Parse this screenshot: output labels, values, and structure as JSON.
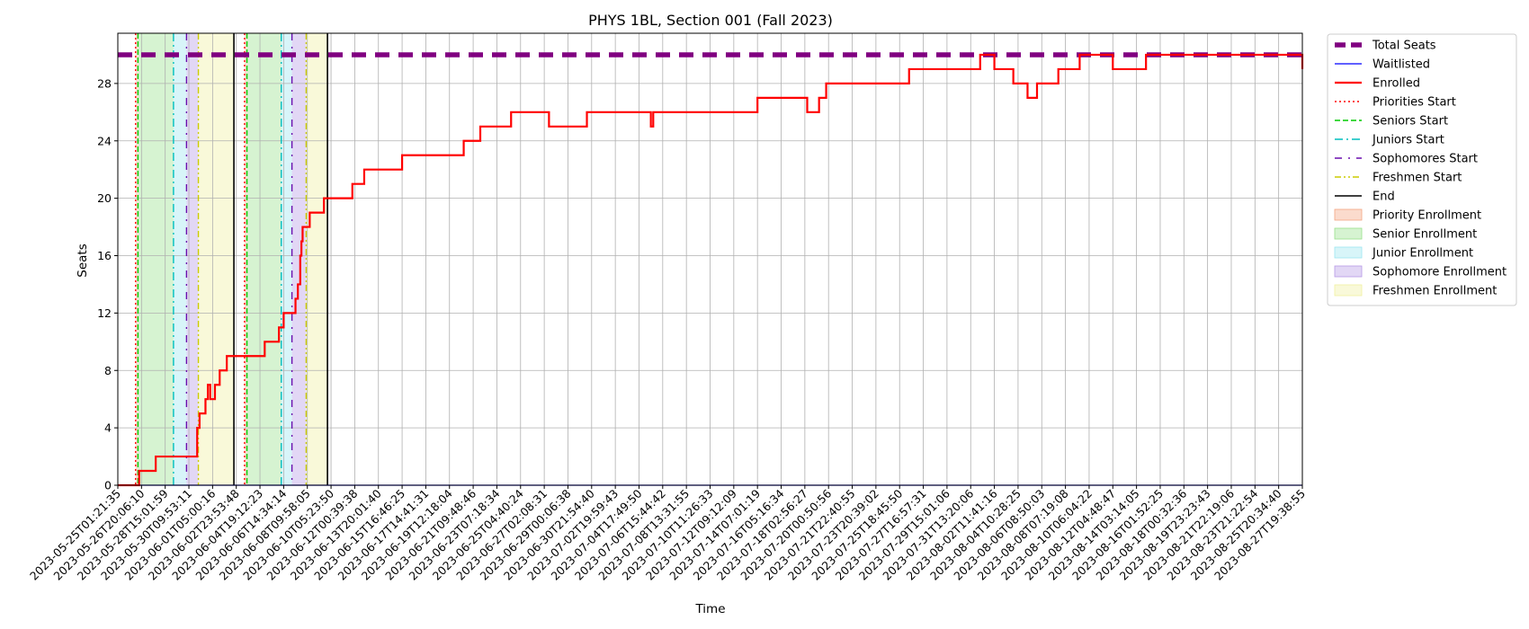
{
  "chart_data": {
    "type": "line",
    "title": "PHYS 1BL, Section 001 (Fall 2023)",
    "xlabel": "Time",
    "ylabel": "Seats",
    "ylim": [
      0,
      31.5
    ],
    "yticks": [
      0,
      4,
      8,
      12,
      16,
      20,
      24,
      28
    ],
    "grid": true,
    "legend_position": "outside-right",
    "x_tick_labels": [
      "2023-05-25T01:21:35",
      "2023-05-26T20:06:10",
      "2023-05-28T15:01:59",
      "2023-05-30T09:53:11",
      "2023-06-01T05:00:16",
      "2023-06-02T23:53:48",
      "2023-06-04T19:12:23",
      "2023-06-06T14:34:14",
      "2023-06-08T09:58:05",
      "2023-06-10T05:23:50",
      "2023-06-12T00:39:38",
      "2023-06-13T20:01:40",
      "2023-06-15T16:46:25",
      "2023-06-17T14:41:31",
      "2023-06-19T12:18:04",
      "2023-06-21T09:48:46",
      "2023-06-23T07:18:34",
      "2023-06-25T04:40:24",
      "2023-06-27T02:08:31",
      "2023-06-29T00:06:38",
      "2023-06-30T21:54:40",
      "2023-07-02T19:59:43",
      "2023-07-04T17:49:50",
      "2023-07-06T15:44:42",
      "2023-07-08T13:31:55",
      "2023-07-10T11:26:33",
      "2023-07-12T09:12:09",
      "2023-07-14T07:01:19",
      "2023-07-16T05:16:34",
      "2023-07-18T02:56:27",
      "2023-07-20T00:50:56",
      "2023-07-21T22:40:55",
      "2023-07-23T20:39:02",
      "2023-07-25T18:45:50",
      "2023-07-27T16:57:31",
      "2023-07-29T15:01:06",
      "2023-07-31T13:20:06",
      "2023-08-02T11:41:16",
      "2023-08-04T10:28:25",
      "2023-08-06T08:50:03",
      "2023-08-08T07:19:08",
      "2023-08-10T06:04:22",
      "2023-08-12T04:48:47",
      "2023-08-14T03:14:05",
      "2023-08-16T01:52:25",
      "2023-08-18T00:32:36",
      "2023-08-19T23:23:43",
      "2023-08-21T22:19:06",
      "2023-08-23T21:22:54",
      "2023-08-25T20:34:40",
      "2023-08-27T19:38:55"
    ],
    "series": [
      {
        "name": "Total Seats",
        "color": "#800080",
        "style": "dashed-thick",
        "x_tick_index": [
          0,
          50
        ],
        "values": [
          30,
          30
        ]
      },
      {
        "name": "Waitlisted",
        "color": "#0000ff",
        "style": "solid",
        "x_tick_index": [
          0,
          50
        ],
        "values": [
          0,
          0
        ]
      },
      {
        "name": "Enrolled",
        "color": "#ff0000",
        "style": "solid-step",
        "x_tick_index": [
          0,
          0.9,
          1.6,
          3.3,
          3.35,
          3.45,
          3.6,
          3.7,
          3.75,
          3.8,
          3.9,
          4.0,
          4.1,
          4.3,
          4.6,
          6.2,
          6.8,
          7.0,
          7.2,
          7.5,
          7.6,
          7.7,
          7.75,
          7.8,
          8.0,
          8.1,
          8.4,
          8.7,
          9.0,
          9.1,
          9.9,
          10.4,
          12.0,
          14.6,
          15.3,
          16.6,
          18.2,
          19.8,
          22.4,
          22.5,
          22.6,
          24.9,
          27.0,
          29.1,
          29.6,
          29.9,
          33.4,
          36.4,
          36.8,
          37.0,
          37.8,
          38.4,
          38.8,
          39.7,
          40.6,
          42.0,
          43.4,
          50.0
        ],
        "values": [
          0,
          1,
          2,
          2,
          4,
          5,
          5,
          6,
          6,
          7,
          6,
          6,
          7,
          8,
          9,
          10,
          11,
          12,
          12,
          13,
          14,
          16,
          17,
          18,
          18,
          19,
          19,
          20,
          20,
          20,
          21,
          22,
          23,
          24,
          25,
          26,
          25,
          26,
          26,
          25,
          26,
          26,
          27,
          26,
          27,
          28,
          29,
          30,
          30,
          29,
          28,
          27,
          28,
          29,
          30,
          29,
          30,
          29
        ]
      }
    ],
    "markers": [
      {
        "name": "Priorities Start",
        "color": "#ff0000",
        "style": "dotted",
        "x_tick_index": [
          0.75,
          5.35
        ]
      },
      {
        "name": "Seniors Start",
        "color": "#00cc00",
        "style": "dashed",
        "x_tick_index": [
          0.85,
          5.45
        ]
      },
      {
        "name": "Juniors Start",
        "color": "#00bfbf",
        "style": "dashdot",
        "x_tick_index": [
          2.35,
          6.9
        ]
      },
      {
        "name": "Sophomores Start",
        "color": "#6a0dad",
        "style": "loosely-dashdot",
        "x_tick_index": [
          2.9,
          7.35
        ]
      },
      {
        "name": "Freshmen Start",
        "color": "#cccc00",
        "style": "dashdotdot",
        "x_tick_index": [
          3.4,
          7.95
        ]
      },
      {
        "name": "End",
        "color": "#000000",
        "style": "solid",
        "x_tick_index": [
          4.9,
          8.85
        ]
      }
    ],
    "regions": [
      {
        "name": "Priority Enrollment",
        "color": "#f4a582",
        "x_tick_index": [
          [
            0.75,
            0.85
          ],
          [
            5.35,
            5.45
          ]
        ]
      },
      {
        "name": "Senior Enrollment",
        "color": "#98e08b",
        "x_tick_index": [
          [
            0.85,
            2.35
          ],
          [
            5.45,
            6.9
          ]
        ]
      },
      {
        "name": "Junior Enrollment",
        "color": "#9ee6f0",
        "x_tick_index": [
          [
            2.35,
            2.9
          ],
          [
            6.9,
            7.35
          ]
        ]
      },
      {
        "name": "Sophomore Enrollment",
        "color": "#b79ae6",
        "x_tick_index": [
          [
            2.9,
            3.4
          ],
          [
            7.35,
            7.95
          ]
        ]
      },
      {
        "name": "Freshmen Enrollment",
        "color": "#f0f0a0",
        "x_tick_index": [
          [
            3.4,
            4.9
          ],
          [
            7.95,
            8.85
          ]
        ]
      }
    ],
    "legend": [
      "Total Seats",
      "Waitlisted",
      "Enrolled",
      "Priorities Start",
      "Seniors Start",
      "Juniors Start",
      "Sophomores Start",
      "Freshmen Start",
      "End",
      "Priority Enrollment",
      "Senior Enrollment",
      "Junior Enrollment",
      "Sophomore Enrollment",
      "Freshmen Enrollment"
    ]
  }
}
